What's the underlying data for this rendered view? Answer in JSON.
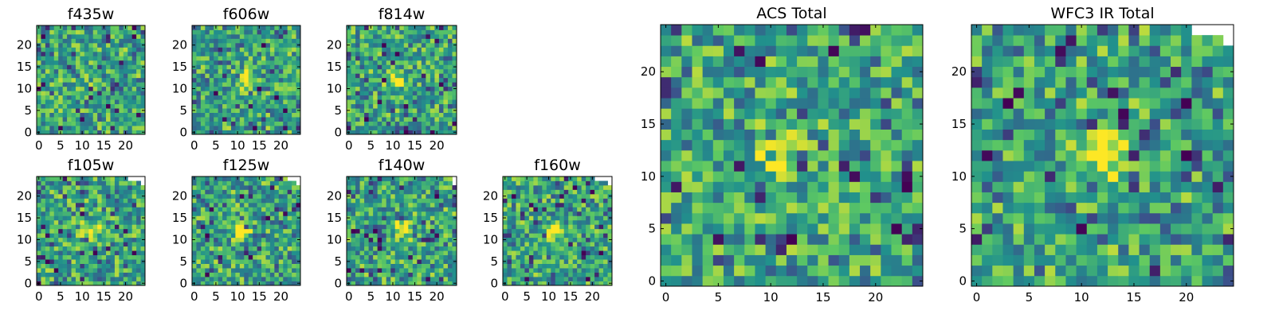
{
  "figure": {
    "colormap": [
      "#440154",
      "#3b528b",
      "#21918c",
      "#5ec962",
      "#fde725"
    ]
  },
  "chart_data": [
    {
      "type": "heatmap",
      "title": "f435w",
      "grid": [
        25,
        25
      ],
      "xticks": [
        "0",
        "5",
        "10",
        "15",
        "20"
      ],
      "yticks": [
        "0",
        "5",
        "10",
        "15",
        "20"
      ],
      "blank": [],
      "seed": 11,
      "center": [
        12,
        12
      ],
      "peak": 0.1
    },
    {
      "type": "heatmap",
      "title": "f606w",
      "grid": [
        25,
        25
      ],
      "xticks": [
        "0",
        "5",
        "10",
        "15",
        "20"
      ],
      "yticks": [
        "0",
        "5",
        "10",
        "15",
        "20"
      ],
      "blank": [],
      "seed": 23,
      "center": [
        12,
        12
      ],
      "peak": 0.45
    },
    {
      "type": "heatmap",
      "title": "f814w",
      "grid": [
        25,
        25
      ],
      "xticks": [
        "0",
        "5",
        "10",
        "15",
        "20"
      ],
      "yticks": [
        "0",
        "5",
        "10",
        "15",
        "20"
      ],
      "blank": [],
      "seed": 37,
      "center": [
        11,
        12
      ],
      "peak": 0.6
    },
    {
      "type": "heatmap",
      "title": "f105w",
      "grid": [
        25,
        25
      ],
      "xticks": [
        "0",
        "5",
        "10",
        "15",
        "20"
      ],
      "yticks": [
        "0",
        "5",
        "10",
        "15",
        "20"
      ],
      "blank": [
        [
          21,
          24
        ],
        [
          22,
          24
        ],
        [
          23,
          24
        ],
        [
          24,
          24
        ],
        [
          24,
          23
        ]
      ],
      "seed": 41,
      "center": [
        12,
        12
      ],
      "peak": 0.5
    },
    {
      "type": "heatmap",
      "title": "f125w",
      "grid": [
        25,
        25
      ],
      "xticks": [
        "0",
        "5",
        "10",
        "15",
        "20"
      ],
      "yticks": [
        "0",
        "5",
        "10",
        "15",
        "20"
      ],
      "blank": [
        [
          22,
          24
        ],
        [
          23,
          24
        ],
        [
          24,
          24
        ],
        [
          24,
          23
        ]
      ],
      "seed": 53,
      "center": [
        11,
        12
      ],
      "peak": 0.45
    },
    {
      "type": "heatmap",
      "title": "f140w",
      "grid": [
        25,
        25
      ],
      "xticks": [
        "0",
        "5",
        "10",
        "15",
        "20"
      ],
      "yticks": [
        "0",
        "5",
        "10",
        "15",
        "20"
      ],
      "blank": [
        [
          24,
          24
        ],
        [
          24,
          23
        ]
      ],
      "seed": 67,
      "center": [
        12,
        12
      ],
      "peak": 0.55
    },
    {
      "type": "heatmap",
      "title": "f160w",
      "grid": [
        25,
        25
      ],
      "xticks": [
        "0",
        "5",
        "10",
        "15",
        "20"
      ],
      "yticks": [
        "0",
        "5",
        "10",
        "15",
        "20"
      ],
      "blank": [
        [
          21,
          24
        ],
        [
          22,
          24
        ],
        [
          23,
          24
        ],
        [
          24,
          24
        ],
        [
          24,
          23
        ]
      ],
      "seed": 79,
      "center": [
        11,
        12
      ],
      "peak": 0.6
    },
    {
      "type": "heatmap",
      "title": "ACS Total",
      "grid": [
        25,
        25
      ],
      "xticks": [
        "0",
        "5",
        "10",
        "15",
        "20"
      ],
      "yticks": [
        "0",
        "5",
        "10",
        "15",
        "20"
      ],
      "blank": [],
      "seed": 97,
      "center": [
        11,
        12
      ],
      "peak": 0.55
    },
    {
      "type": "heatmap",
      "title": "WFC3 IR Total",
      "grid": [
        25,
        25
      ],
      "xticks": [
        "0",
        "5",
        "10",
        "15",
        "20"
      ],
      "yticks": [
        "0",
        "5",
        "10",
        "15",
        "20"
      ],
      "blank": [
        [
          21,
          24
        ],
        [
          22,
          24
        ],
        [
          23,
          24
        ],
        [
          24,
          24
        ],
        [
          24,
          23
        ]
      ],
      "seed": 131,
      "center": [
        12,
        12
      ],
      "peak": 0.6
    }
  ]
}
